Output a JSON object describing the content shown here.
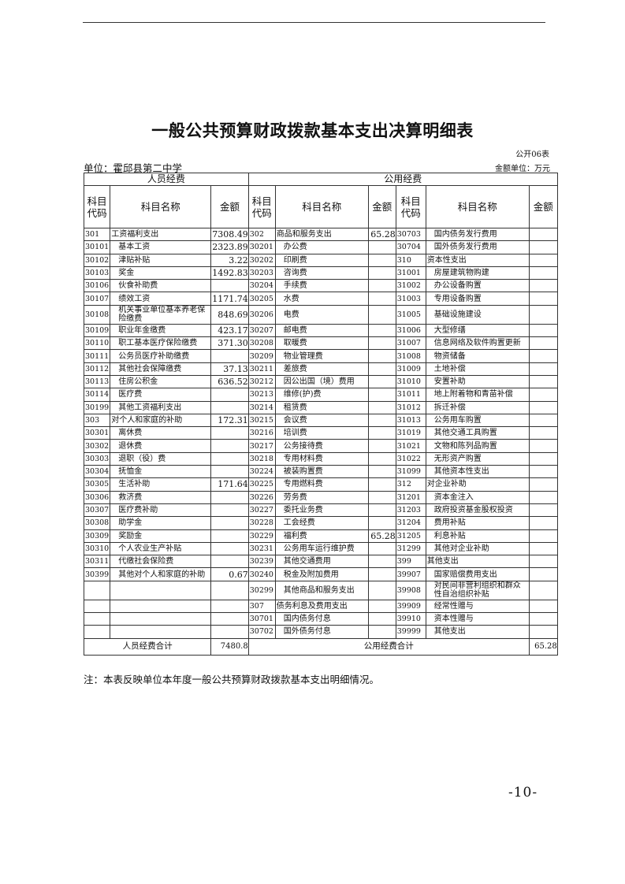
{
  "title": "一般公共预算财政拨款基本支出决算明细表",
  "form_no": "公开06表",
  "unit_label": "单位：霍邱县第二中学",
  "money_unit": "金额单位：万元",
  "headers": {
    "personnel": "人员经费",
    "public": "公用经费",
    "code": "科目代码",
    "name": "科目名称",
    "amount": "金额"
  },
  "rows": [
    [
      [
        "301",
        "工资福利支出",
        "7308.49"
      ],
      [
        "302",
        "商品和服务支出",
        "65.28"
      ],
      [
        "30703",
        "国内债务发行费用",
        ""
      ]
    ],
    [
      [
        "30101",
        "基本工资",
        "2323.89"
      ],
      [
        "30201",
        "办公费",
        ""
      ],
      [
        "30704",
        "国外债务发行费用",
        ""
      ]
    ],
    [
      [
        "30102",
        "津贴补贴",
        "3.22"
      ],
      [
        "30202",
        "印刷费",
        ""
      ],
      [
        "310",
        "资本性支出",
        ""
      ]
    ],
    [
      [
        "30103",
        "奖金",
        "1492.83"
      ],
      [
        "30203",
        "咨询费",
        ""
      ],
      [
        "31001",
        "房屋建筑物购建",
        ""
      ]
    ],
    [
      [
        "30106",
        "伙食补助费",
        ""
      ],
      [
        "30204",
        "手续费",
        ""
      ],
      [
        "31002",
        "办公设备购置",
        ""
      ]
    ],
    [
      [
        "30107",
        "绩效工资",
        "1171.74"
      ],
      [
        "30205",
        "水费",
        ""
      ],
      [
        "31003",
        "专用设备购置",
        ""
      ]
    ],
    [
      [
        "30108",
        "机关事业单位基本养老保险缴费",
        "848.69"
      ],
      [
        "30206",
        "电费",
        ""
      ],
      [
        "31005",
        "基础设施建设",
        ""
      ]
    ],
    [
      [
        "30109",
        "职业年金缴费",
        "423.17"
      ],
      [
        "30207",
        "邮电费",
        ""
      ],
      [
        "31006",
        "大型修缮",
        ""
      ]
    ],
    [
      [
        "30110",
        "职工基本医疗保险缴费",
        "371.30"
      ],
      [
        "30208",
        "取暖费",
        ""
      ],
      [
        "31007",
        "信息网络及软件购置更新",
        ""
      ]
    ],
    [
      [
        "30111",
        "公务员医疗补助缴费",
        ""
      ],
      [
        "30209",
        "物业管理费",
        ""
      ],
      [
        "31008",
        "物资储备",
        ""
      ]
    ],
    [
      [
        "30112",
        "其他社会保障缴费",
        "37.13"
      ],
      [
        "30211",
        "差旅费",
        ""
      ],
      [
        "31009",
        "土地补偿",
        ""
      ]
    ],
    [
      [
        "30113",
        "住房公积金",
        "636.52"
      ],
      [
        "30212",
        "因公出国（境）费用",
        ""
      ],
      [
        "31010",
        "安置补助",
        ""
      ]
    ],
    [
      [
        "30114",
        "医疗费",
        ""
      ],
      [
        "30213",
        "维修(护)费",
        ""
      ],
      [
        "31011",
        "地上附着物和青苗补偿",
        ""
      ]
    ],
    [
      [
        "30199",
        "其他工资福利支出",
        ""
      ],
      [
        "30214",
        "租赁费",
        ""
      ],
      [
        "31012",
        "拆迁补偿",
        ""
      ]
    ],
    [
      [
        "303",
        "对个人和家庭的补助",
        "172.31"
      ],
      [
        "30215",
        "会议费",
        ""
      ],
      [
        "31013",
        "公务用车购置",
        ""
      ]
    ],
    [
      [
        "30301",
        "离休费",
        ""
      ],
      [
        "30216",
        "培训费",
        ""
      ],
      [
        "31019",
        "其他交通工具购置",
        ""
      ]
    ],
    [
      [
        "30302",
        "退休费",
        ""
      ],
      [
        "30217",
        "公务接待费",
        ""
      ],
      [
        "31021",
        "文物和陈列品购置",
        ""
      ]
    ],
    [
      [
        "30303",
        "退职（役）费",
        ""
      ],
      [
        "30218",
        "专用材料费",
        ""
      ],
      [
        "31022",
        "无形资产购置",
        ""
      ]
    ],
    [
      [
        "30304",
        "抚恤金",
        ""
      ],
      [
        "30224",
        "被装购置费",
        ""
      ],
      [
        "31099",
        "其他资本性支出",
        ""
      ]
    ],
    [
      [
        "30305",
        "生活补助",
        "171.64"
      ],
      [
        "30225",
        "专用燃料费",
        ""
      ],
      [
        "312",
        "对企业补助",
        ""
      ]
    ],
    [
      [
        "30306",
        "救济费",
        ""
      ],
      [
        "30226",
        "劳务费",
        ""
      ],
      [
        "31201",
        "资本金注入",
        ""
      ]
    ],
    [
      [
        "30307",
        "医疗费补助",
        ""
      ],
      [
        "30227",
        "委托业务费",
        ""
      ],
      [
        "31203",
        "政府投资基金股权投资",
        ""
      ]
    ],
    [
      [
        "30308",
        "助学金",
        ""
      ],
      [
        "30228",
        "工会经费",
        ""
      ],
      [
        "31204",
        "费用补贴",
        ""
      ]
    ],
    [
      [
        "30309",
        "奖励金",
        ""
      ],
      [
        "30229",
        "福利费",
        "65.28"
      ],
      [
        "31205",
        "利息补贴",
        ""
      ]
    ],
    [
      [
        "30310",
        "个人农业生产补贴",
        ""
      ],
      [
        "30231",
        "公务用车运行维护费",
        ""
      ],
      [
        "31299",
        "其他对企业补助",
        ""
      ]
    ],
    [
      [
        "30311",
        "代缴社会保险费",
        ""
      ],
      [
        "30239",
        "其他交通费用",
        ""
      ],
      [
        "399",
        "其他支出",
        ""
      ]
    ],
    [
      [
        "30399",
        "其他对个人和家庭的补助",
        "0.67"
      ],
      [
        "30240",
        "税金及附加费用",
        ""
      ],
      [
        "39907",
        "国家赔偿费用支出",
        ""
      ]
    ],
    [
      [
        "",
        "",
        ""
      ],
      [
        "30299",
        "其他商品和服务支出",
        ""
      ],
      [
        "39908",
        "对民间非营利组织和群众性自治组织补贴",
        ""
      ]
    ],
    [
      [
        "",
        "",
        ""
      ],
      [
        "307",
        "债务利息及费用支出",
        ""
      ],
      [
        "39909",
        "经常性赠与",
        ""
      ]
    ],
    [
      [
        "",
        "",
        ""
      ],
      [
        "30701",
        "国内债务付息",
        ""
      ],
      [
        "39910",
        "资本性赠与",
        ""
      ]
    ],
    [
      [
        "",
        "",
        ""
      ],
      [
        "30702",
        "国外债务付息",
        ""
      ],
      [
        "39999",
        "其他支出",
        ""
      ]
    ]
  ],
  "totals": {
    "personnel_label": "人员经费合计",
    "personnel_value": "7480.8",
    "public_label": "公用经费合计",
    "public_value": "65.28"
  },
  "note": "注：本表反映单位本年度一般公共预算财政拨款基本支出明细情况。",
  "page_number": "-10-"
}
